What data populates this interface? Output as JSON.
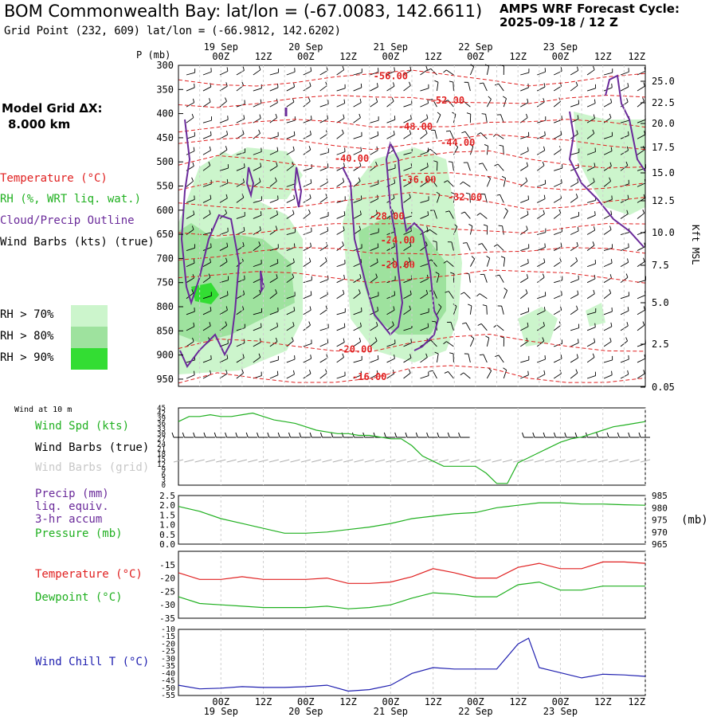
{
  "header": {
    "title": "BOM Commonwealth Bay:  lat/lon = (-67.0083, 142.6611)",
    "subtitle": "Grid Point (232, 609) lat/lon = (-66.9812, 142.6202)",
    "cycle_line1": "AMPS WRF Forecast Cycle:",
    "cycle_line2": "2025-09-18 / 12  Z"
  },
  "left_panel": {
    "grid_line1": "Model Grid ΔX:",
    "grid_line2": "8.000 km",
    "legend": [
      {
        "label": "Temperature (°C)",
        "color": "#e02020"
      },
      {
        "label": "RH (%, WRT liq. wat.)",
        "color": "#20b020"
      },
      {
        "label": "Cloud/Precip Outline",
        "color": "#6a2a9a"
      },
      {
        "label": "Wind Barbs (kts) (true)",
        "color": "#000000"
      }
    ],
    "rh_legend": [
      {
        "label": "RH > 70%",
        "color": "#ccf5cc"
      },
      {
        "label": "RH > 80%",
        "color": "#9ee29e"
      },
      {
        "label": "RH > 90%",
        "color": "#33dd33"
      }
    ]
  },
  "time_axis": {
    "top_dates": [
      "19 Sep",
      "20 Sep",
      "21 Sep",
      "22 Sep",
      "23 Sep"
    ],
    "hours": [
      "00Z",
      "12Z",
      "00Z",
      "12Z",
      "00Z",
      "12Z",
      "00Z",
      "12Z",
      "00Z",
      "12Z"
    ],
    "bottom_dates": [
      "19 Sep",
      "20 Sep",
      "21 Sep",
      "22 Sep",
      "23 Sep"
    ]
  },
  "chart_data": [
    {
      "type": "contour",
      "panel": "time-height cross section",
      "ylabel": "P (mb)",
      "y2label": "Kft MSL",
      "yticks": [
        300,
        350,
        400,
        450,
        500,
        550,
        600,
        650,
        700,
        750,
        800,
        850,
        900,
        950
      ],
      "y2ticks": [
        "25.0",
        "22.5",
        "20.0",
        "17.5",
        "15.0",
        "12.5",
        "10.0",
        "7.5",
        "5.0",
        "2.5",
        "0.05"
      ],
      "temperature_labels": [
        {
          "text": "-56.00",
          "x_hour": 48,
          "p": 322
        },
        {
          "text": "-52.00",
          "x_hour": 64,
          "p": 373
        },
        {
          "text": "-48.00",
          "x_hour": 55,
          "p": 427
        },
        {
          "text": "-44.00",
          "x_hour": 67,
          "p": 460
        },
        {
          "text": "-40.00",
          "x_hour": 37,
          "p": 493
        },
        {
          "text": "-36.00",
          "x_hour": 56,
          "p": 537
        },
        {
          "text": "-32.00",
          "x_hour": 69,
          "p": 573
        },
        {
          "text": "-28.00",
          "x_hour": 47,
          "p": 613
        },
        {
          "text": "-24.00",
          "x_hour": 50,
          "p": 662
        },
        {
          "text": "-20.00",
          "x_hour": 50,
          "p": 713
        },
        {
          "text": "-20.00",
          "x_hour": 38,
          "p": 888
        },
        {
          "text": "-16.00",
          "x_hour": 42,
          "p": 945
        }
      ]
    },
    {
      "type": "line",
      "panel": "wind at 10 m",
      "title": "Wind at 10 m",
      "series_label": "Wind Spd (kts)",
      "barbs_true_label": "Wind Barbs (true)",
      "barbs_grid_label": "Wind Barbs (grid)",
      "yticks": [
        0,
        3,
        6,
        9,
        12,
        15,
        18,
        21,
        24,
        27,
        30,
        33,
        36,
        39,
        42,
        45
      ],
      "x_hours": [
        -12,
        -9,
        -6,
        -3,
        0,
        3,
        6,
        9,
        12,
        15,
        18,
        21,
        24,
        27,
        30,
        33,
        36,
        39,
        42,
        45,
        48,
        51,
        54,
        57,
        60,
        63,
        66,
        69,
        72,
        75,
        78,
        81,
        84,
        87,
        90,
        93,
        96,
        99,
        102,
        105,
        108,
        111,
        114,
        117,
        120
      ],
      "values": [
        37,
        40,
        40,
        41,
        40,
        40,
        41,
        42,
        40,
        38,
        37,
        36,
        34,
        32,
        31,
        30,
        30,
        29,
        29,
        28,
        27,
        27,
        23,
        17,
        14,
        11,
        11,
        11,
        11,
        7,
        1,
        1,
        13,
        16,
        19,
        22,
        25,
        27,
        28,
        30,
        32,
        34,
        35,
        36,
        37
      ],
      "ylim": [
        0,
        45
      ]
    },
    {
      "type": "line",
      "panel": "precip and pressure",
      "labels": [
        "Precip (mm)",
        "liq. equiv.",
        "3-hr accum",
        "Pressure (mb)"
      ],
      "yticks_left": [
        0.0,
        0.5,
        1.0,
        1.5,
        2.0,
        2.5
      ],
      "yticks_right": [
        965,
        970,
        975,
        980,
        985
      ],
      "y2label": "(mb)",
      "x_hours": [
        -12,
        -6,
        0,
        6,
        12,
        18,
        24,
        30,
        36,
        42,
        48,
        54,
        60,
        66,
        72,
        78,
        84,
        90,
        96,
        102,
        108,
        114,
        120
      ],
      "pressure_mb": [
        980.5,
        978.5,
        975.5,
        973.5,
        971.5,
        969.5,
        969.5,
        970,
        971,
        972,
        973.5,
        975.5,
        976.5,
        977.5,
        978,
        980,
        981,
        982,
        982,
        981.5,
        981.5,
        981.2,
        981
      ],
      "ylim_right": [
        965,
        985
      ]
    },
    {
      "type": "line",
      "panel": "temperature and dewpoint",
      "yticks": [
        -15,
        -20,
        -25,
        -30,
        -35
      ],
      "x_hours": [
        -12,
        -6,
        0,
        6,
        12,
        18,
        24,
        30,
        36,
        42,
        48,
        54,
        60,
        66,
        72,
        78,
        84,
        90,
        96,
        102,
        108,
        114,
        120
      ],
      "series": [
        {
          "name": "Temperature (°C)",
          "values": [
            -18,
            -20.5,
            -20.5,
            -19.5,
            -20.5,
            -20.5,
            -20.5,
            -20,
            -22,
            -22,
            -21.5,
            -19.5,
            -16.5,
            -18,
            -20,
            -20,
            -16,
            -14.5,
            -16.5,
            -16.5,
            -14,
            -14,
            -14.5
          ]
        },
        {
          "name": "Dewpoint (°C)",
          "values": [
            -27,
            -29.5,
            -30,
            -30.5,
            -31,
            -31,
            -31,
            -30.5,
            -31.5,
            -31,
            -30,
            -27.5,
            -25.5,
            -26,
            -27,
            -27,
            -22.5,
            -21.5,
            -24.5,
            -24.5,
            -23,
            -23,
            -23
          ]
        }
      ],
      "ylim": [
        -35,
        -10
      ]
    },
    {
      "type": "line",
      "panel": "wind chill",
      "yticks": [
        -10,
        -15,
        -20,
        -25,
        -30,
        -35,
        -40,
        -45,
        -50,
        -55
      ],
      "x_hours": [
        -12,
        -6,
        0,
        6,
        12,
        18,
        24,
        30,
        36,
        42,
        48,
        54,
        60,
        66,
        72,
        78,
        84,
        87,
        90,
        96,
        102,
        108,
        114,
        120
      ],
      "series": [
        {
          "name": "Wind Chill T (°C)",
          "values": [
            -48,
            -50.5,
            -50,
            -49,
            -49.5,
            -49.5,
            -49,
            -48,
            -52,
            -51,
            -48,
            -40,
            -36,
            -37,
            -37,
            -37,
            -20,
            -16,
            -36,
            -39.5,
            -43,
            -40.5,
            -41,
            -42
          ]
        }
      ],
      "ylim": [
        -55,
        -10
      ]
    }
  ]
}
